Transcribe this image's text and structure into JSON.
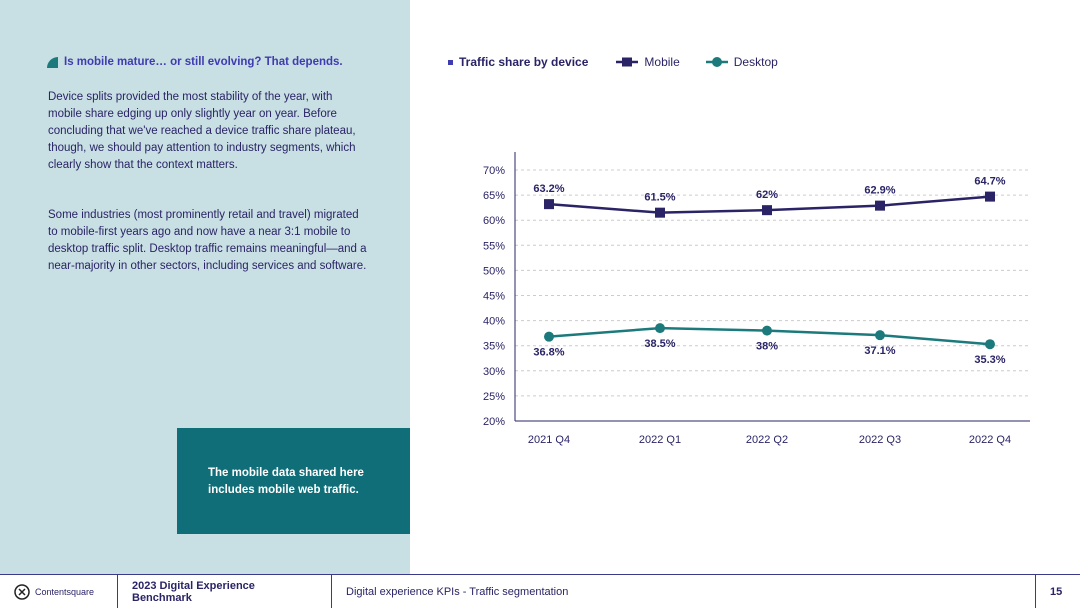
{
  "sidebar": {
    "heading": "Is mobile mature… or still evolving? That depends.",
    "paragraph1": "Device splits provided the most stability of the year, with mobile share edging up only slightly year on year. Before concluding that we've reached a device traffic share plateau, though, we should pay attention to industry segments, which clearly show that the context matters.",
    "paragraph2": "Some industries (most prominently retail and travel) migrated to mobile-first years ago and now have a near 3:1 mobile to desktop traffic split. Desktop traffic remains meaningful—and a near-majority in other sectors, including services and software.",
    "note": "The mobile data shared here includes mobile web traffic."
  },
  "chart_data": {
    "type": "line",
    "title": "Traffic share by device",
    "categories": [
      "2021 Q4",
      "2022 Q1",
      "2022 Q2",
      "2022 Q3",
      "2022 Q4"
    ],
    "series": [
      {
        "name": "Mobile",
        "values": [
          63.2,
          61.5,
          62,
          62.9,
          64.7
        ],
        "labels": [
          "63.2%",
          "61.5%",
          "62%",
          "62.9%",
          "64.7%"
        ],
        "color": "#2a2466"
      },
      {
        "name": "Desktop",
        "values": [
          36.8,
          38.5,
          38,
          37.1,
          35.3
        ],
        "labels": [
          "36.8%",
          "38.5%",
          "38%",
          "37.1%",
          "35.3%"
        ],
        "color": "#1c7a7c"
      }
    ],
    "yticks": [
      "20%",
      "25%",
      "30%",
      "35%",
      "40%",
      "45%",
      "50%",
      "55%",
      "60%",
      "65%",
      "70%"
    ],
    "ylim": [
      20,
      70
    ],
    "grid": true,
    "legend": "top-left"
  },
  "footer": {
    "logo": "Contentsquare",
    "report": "2023 Digital Experience Benchmark",
    "section": "Digital experience KPIs - Traffic segmentation",
    "page": "15"
  }
}
